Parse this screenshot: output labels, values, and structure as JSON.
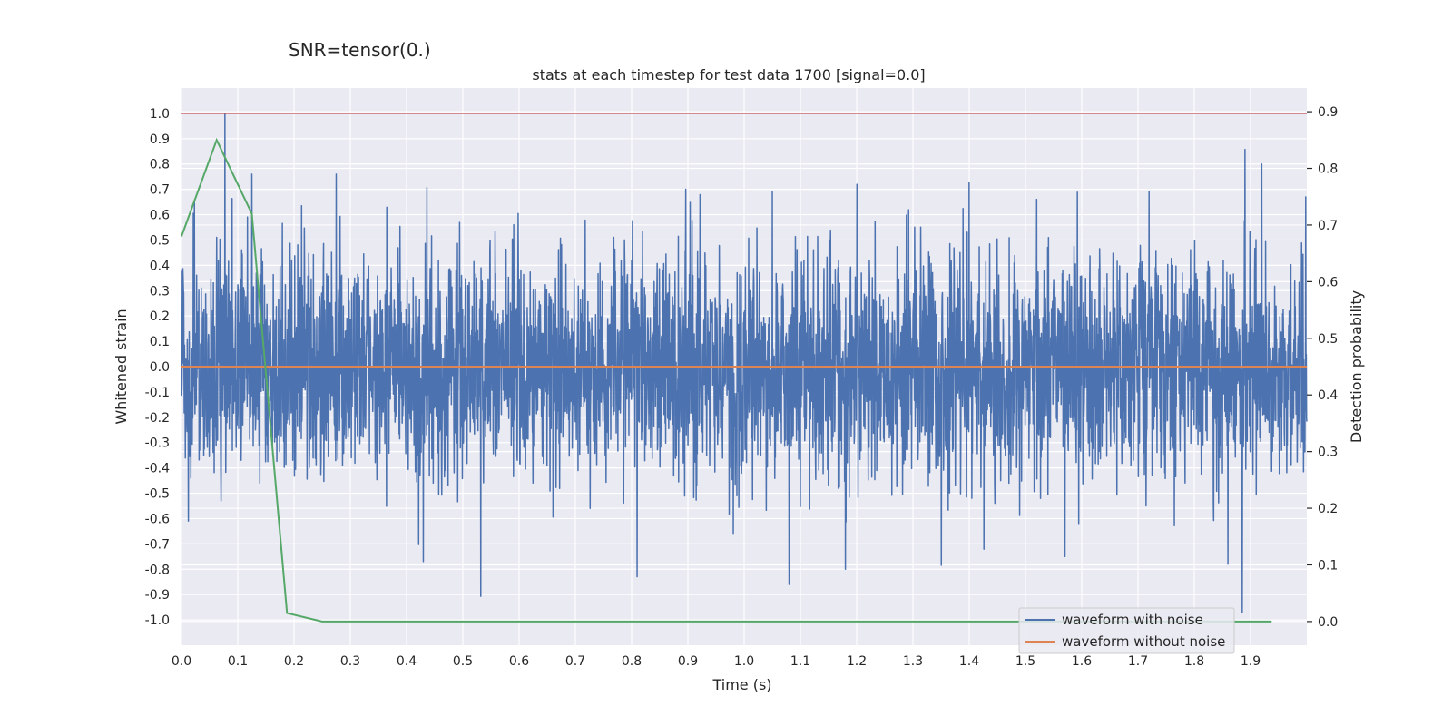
{
  "chart_data": {
    "type": "line",
    "suptitle": "SNR=tensor(0.)",
    "title": "stats at each timestep for test data 1700 [signal=0.0]",
    "xlabel": "Time (s)",
    "ylabel_left": "Whitened strain",
    "ylabel_right": "Detection probability",
    "xlim": [
      0.0,
      2.0
    ],
    "ylim_left": [
      -1.1,
      1.1
    ],
    "ylim_right": [
      -0.0418,
      0.9418
    ],
    "x_ticks": [
      "0.0",
      "0.1",
      "0.2",
      "0.3",
      "0.4",
      "0.5",
      "0.6",
      "0.7",
      "0.8",
      "0.9",
      "1.0",
      "1.1",
      "1.2",
      "1.3",
      "1.4",
      "1.5",
      "1.6",
      "1.7",
      "1.8",
      "1.9"
    ],
    "y_left_ticks": [
      "1.0",
      "0.9",
      "0.8",
      "0.7",
      "0.6",
      "0.5",
      "0.4",
      "0.3",
      "0.2",
      "0.1",
      "0.0",
      "-0.1",
      "-0.2",
      "-0.3",
      "-0.4",
      "-0.5",
      "-0.6",
      "-0.7",
      "-0.8",
      "-0.9",
      "-1.0"
    ],
    "y_right_ticks": [
      "0.9",
      "0.8",
      "0.7",
      "0.6",
      "0.5",
      "0.4",
      "0.3",
      "0.2",
      "0.1",
      "0.0"
    ],
    "series": [
      {
        "name": "waveform with noise",
        "color": "#4c72b0",
        "axis": "left",
        "samples": 4096,
        "seed": 1700,
        "spread": 0.22,
        "clip": [
          -1.0,
          1.0
        ],
        "notable_points": [
          {
            "x": 0.077,
            "y": 1.0
          },
          {
            "x": 0.012,
            "y": -0.61
          },
          {
            "x": 0.43,
            "y": -0.77
          },
          {
            "x": 0.81,
            "y": -0.83
          },
          {
            "x": 1.08,
            "y": -0.86
          },
          {
            "x": 1.18,
            "y": -0.8
          },
          {
            "x": 1.57,
            "y": -0.75
          },
          {
            "x": 1.86,
            "y": -0.78
          },
          {
            "x": 1.885,
            "y": -0.97
          },
          {
            "x": 1.92,
            "y": 0.8
          },
          {
            "x": 1.05,
            "y": 0.69
          },
          {
            "x": 0.275,
            "y": 0.76
          },
          {
            "x": 0.125,
            "y": 0.76
          },
          {
            "x": 1.998,
            "y": 0.67
          }
        ]
      },
      {
        "name": "waveform without noise",
        "color": "#dd8452",
        "axis": "left",
        "x": [
          0.0,
          2.0
        ],
        "y": [
          0.0,
          0.0
        ]
      },
      {
        "name": "detection probability",
        "color": "#55a868",
        "axis": "right",
        "x": [
          0.0,
          0.0625,
          0.125,
          0.1875,
          0.25,
          0.3125,
          1.9375
        ],
        "y": [
          0.68,
          0.85,
          0.72,
          0.015,
          0.0,
          0.0,
          0.0
        ]
      },
      {
        "name": "threshold",
        "color": "#c44e52",
        "axis": "left",
        "x": [
          0.0,
          2.0
        ],
        "y": [
          1.0,
          1.0
        ]
      }
    ],
    "legend": {
      "position": "lower-right",
      "entries": [
        "waveform with noise",
        "waveform without noise"
      ]
    },
    "grid": true
  },
  "colors": {
    "plot_background": "#eaeaf2",
    "grid": "#ffffff",
    "text": "#262626"
  }
}
